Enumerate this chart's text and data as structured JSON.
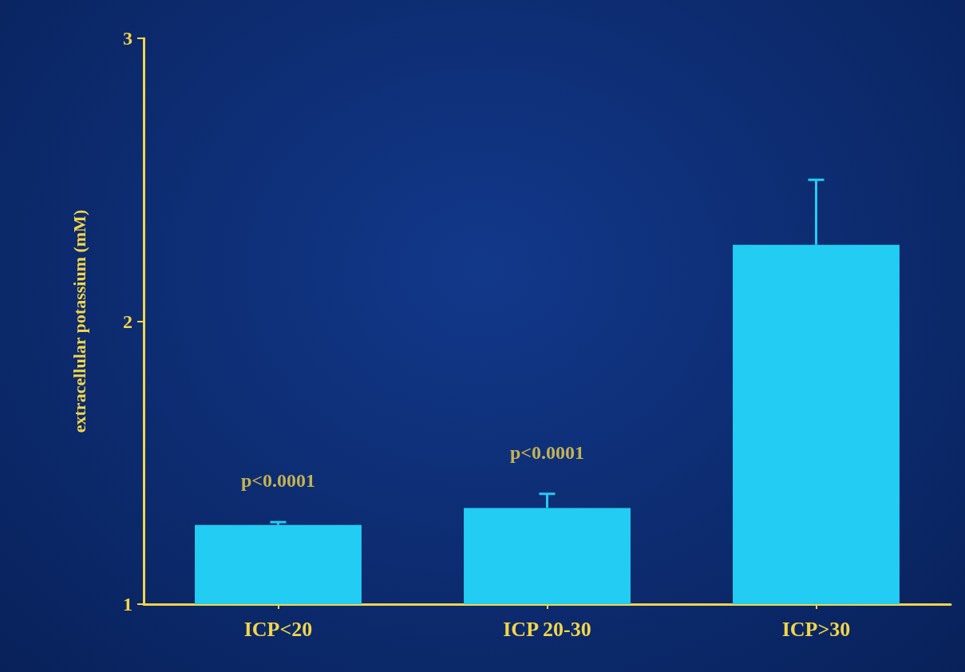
{
  "chart_data": {
    "type": "bar",
    "ylabel": "extracellular potassium (mM)",
    "categories": [
      "ICP<20",
      "ICP 20-30",
      "ICP>30"
    ],
    "values": [
      1.28,
      1.34,
      2.27
    ],
    "errors": [
      [
        1.28,
        1.29
      ],
      [
        1.34,
        1.39
      ],
      [
        2.27,
        2.5
      ]
    ],
    "color": "#22ccf2",
    "ylim": [
      1,
      3
    ],
    "yticks": [
      1,
      2,
      3
    ],
    "grid": false,
    "annotations": [
      "p<0.0001",
      "p<0.0001"
    ]
  }
}
